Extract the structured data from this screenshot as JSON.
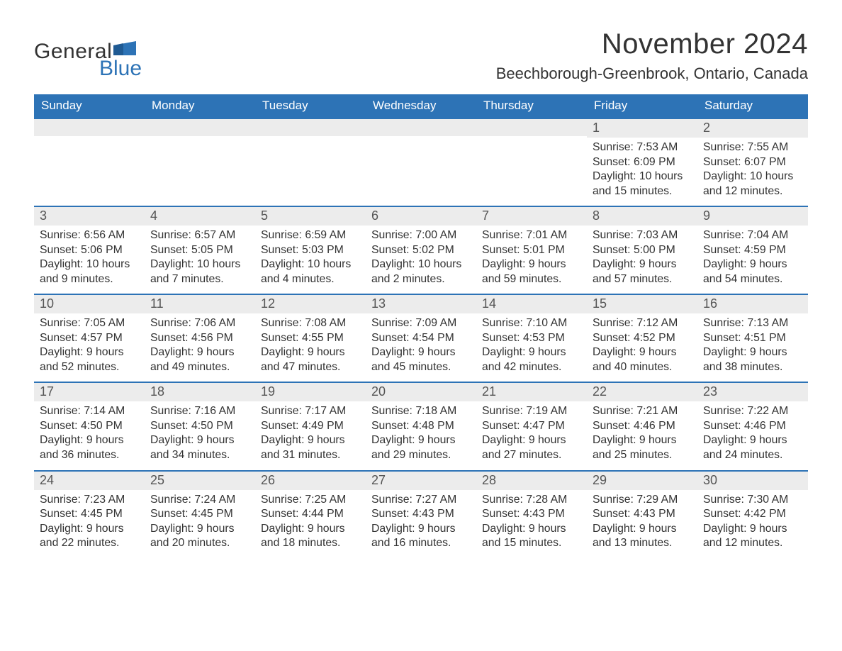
{
  "brand": {
    "name_part1": "General",
    "name_part2": "Blue",
    "flag_color": "#2d73b6"
  },
  "title": "November 2024",
  "location": "Beechborough-Greenbrook, Ontario, Canada",
  "colors": {
    "header_bg": "#2d73b6",
    "row_rule": "#2d73b6",
    "daynum_bg": "#ececec",
    "text": "#333333",
    "background": "#ffffff"
  },
  "typography": {
    "title_fontsize_pt": 30,
    "location_fontsize_pt": 17,
    "dayheader_fontsize_pt": 13,
    "body_fontsize_pt": 12,
    "font_family": "Arial"
  },
  "layout": {
    "columns": 7,
    "rows": 5,
    "start_weekday": "Sunday"
  },
  "day_headers": [
    "Sunday",
    "Monday",
    "Tuesday",
    "Wednesday",
    "Thursday",
    "Friday",
    "Saturday"
  ],
  "labels": {
    "sunrise": "Sunrise",
    "sunset": "Sunset",
    "daylight": "Daylight"
  },
  "weeks": [
    [
      {
        "empty": true
      },
      {
        "empty": true
      },
      {
        "empty": true
      },
      {
        "empty": true
      },
      {
        "empty": true
      },
      {
        "day": 1,
        "sunrise": "7:53 AM",
        "sunset": "6:09 PM",
        "daylight": "10 hours and 15 minutes."
      },
      {
        "day": 2,
        "sunrise": "7:55 AM",
        "sunset": "6:07 PM",
        "daylight": "10 hours and 12 minutes."
      }
    ],
    [
      {
        "day": 3,
        "sunrise": "6:56 AM",
        "sunset": "5:06 PM",
        "daylight": "10 hours and 9 minutes."
      },
      {
        "day": 4,
        "sunrise": "6:57 AM",
        "sunset": "5:05 PM",
        "daylight": "10 hours and 7 minutes."
      },
      {
        "day": 5,
        "sunrise": "6:59 AM",
        "sunset": "5:03 PM",
        "daylight": "10 hours and 4 minutes."
      },
      {
        "day": 6,
        "sunrise": "7:00 AM",
        "sunset": "5:02 PM",
        "daylight": "10 hours and 2 minutes."
      },
      {
        "day": 7,
        "sunrise": "7:01 AM",
        "sunset": "5:01 PM",
        "daylight": "9 hours and 59 minutes."
      },
      {
        "day": 8,
        "sunrise": "7:03 AM",
        "sunset": "5:00 PM",
        "daylight": "9 hours and 57 minutes."
      },
      {
        "day": 9,
        "sunrise": "7:04 AM",
        "sunset": "4:59 PM",
        "daylight": "9 hours and 54 minutes."
      }
    ],
    [
      {
        "day": 10,
        "sunrise": "7:05 AM",
        "sunset": "4:57 PM",
        "daylight": "9 hours and 52 minutes."
      },
      {
        "day": 11,
        "sunrise": "7:06 AM",
        "sunset": "4:56 PM",
        "daylight": "9 hours and 49 minutes."
      },
      {
        "day": 12,
        "sunrise": "7:08 AM",
        "sunset": "4:55 PM",
        "daylight": "9 hours and 47 minutes."
      },
      {
        "day": 13,
        "sunrise": "7:09 AM",
        "sunset": "4:54 PM",
        "daylight": "9 hours and 45 minutes."
      },
      {
        "day": 14,
        "sunrise": "7:10 AM",
        "sunset": "4:53 PM",
        "daylight": "9 hours and 42 minutes."
      },
      {
        "day": 15,
        "sunrise": "7:12 AM",
        "sunset": "4:52 PM",
        "daylight": "9 hours and 40 minutes."
      },
      {
        "day": 16,
        "sunrise": "7:13 AM",
        "sunset": "4:51 PM",
        "daylight": "9 hours and 38 minutes."
      }
    ],
    [
      {
        "day": 17,
        "sunrise": "7:14 AM",
        "sunset": "4:50 PM",
        "daylight": "9 hours and 36 minutes."
      },
      {
        "day": 18,
        "sunrise": "7:16 AM",
        "sunset": "4:50 PM",
        "daylight": "9 hours and 34 minutes."
      },
      {
        "day": 19,
        "sunrise": "7:17 AM",
        "sunset": "4:49 PM",
        "daylight": "9 hours and 31 minutes."
      },
      {
        "day": 20,
        "sunrise": "7:18 AM",
        "sunset": "4:48 PM",
        "daylight": "9 hours and 29 minutes."
      },
      {
        "day": 21,
        "sunrise": "7:19 AM",
        "sunset": "4:47 PM",
        "daylight": "9 hours and 27 minutes."
      },
      {
        "day": 22,
        "sunrise": "7:21 AM",
        "sunset": "4:46 PM",
        "daylight": "9 hours and 25 minutes."
      },
      {
        "day": 23,
        "sunrise": "7:22 AM",
        "sunset": "4:46 PM",
        "daylight": "9 hours and 24 minutes."
      }
    ],
    [
      {
        "day": 24,
        "sunrise": "7:23 AM",
        "sunset": "4:45 PM",
        "daylight": "9 hours and 22 minutes."
      },
      {
        "day": 25,
        "sunrise": "7:24 AM",
        "sunset": "4:45 PM",
        "daylight": "9 hours and 20 minutes."
      },
      {
        "day": 26,
        "sunrise": "7:25 AM",
        "sunset": "4:44 PM",
        "daylight": "9 hours and 18 minutes."
      },
      {
        "day": 27,
        "sunrise": "7:27 AM",
        "sunset": "4:43 PM",
        "daylight": "9 hours and 16 minutes."
      },
      {
        "day": 28,
        "sunrise": "7:28 AM",
        "sunset": "4:43 PM",
        "daylight": "9 hours and 15 minutes."
      },
      {
        "day": 29,
        "sunrise": "7:29 AM",
        "sunset": "4:43 PM",
        "daylight": "9 hours and 13 minutes."
      },
      {
        "day": 30,
        "sunrise": "7:30 AM",
        "sunset": "4:42 PM",
        "daylight": "9 hours and 12 minutes."
      }
    ]
  ]
}
